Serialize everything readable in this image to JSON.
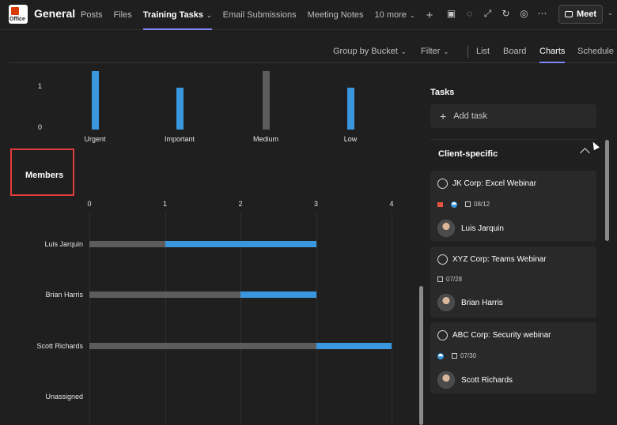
{
  "header": {
    "logo_text": "Office",
    "channel": "General",
    "tabs": [
      {
        "label": "Posts"
      },
      {
        "label": "Files"
      },
      {
        "label": "Training Tasks"
      },
      {
        "label": "Email Submissions"
      },
      {
        "label": "Meeting Notes"
      },
      {
        "label": "10 more"
      }
    ],
    "meet_label": "Meet"
  },
  "toolbar": {
    "group_by": "Group by Bucket",
    "filter": "Filter",
    "views": [
      "List",
      "Board",
      "Charts",
      "Schedule"
    ],
    "active_view": "Charts"
  },
  "chart_data": [
    {
      "type": "bar",
      "categories": [
        "Urgent",
        "Important",
        "Medium",
        "Low"
      ],
      "ytick_labels": [
        "1",
        "0"
      ],
      "ylim": [
        0,
        1.5
      ],
      "series": [
        {
          "values": [
            1.4,
            1,
            1.4,
            1
          ],
          "color": "#3a96dd"
        }
      ],
      "bar_colors": [
        "#3a96dd",
        "#3a96dd",
        "#5c5c5c",
        "#3a96dd"
      ]
    },
    {
      "type": "bar",
      "orientation": "horizontal",
      "title": "Members",
      "categories": [
        "Luis Jarquin",
        "Brian Harris",
        "Scott Richards",
        "Unassigned"
      ],
      "xtick_labels": [
        "0",
        "1",
        "2",
        "3",
        "4"
      ],
      "xlim": [
        0,
        4
      ],
      "series": [
        {
          "values": [
            1,
            2,
            3,
            0
          ],
          "color": "#5c5c5c"
        },
        {
          "values": [
            2,
            1,
            1,
            0
          ],
          "color": "#3a96dd"
        }
      ]
    }
  ],
  "task_pane": {
    "heading": "Tasks",
    "add_task_label": "Add task",
    "bucket": "Client-specific",
    "tasks": [
      {
        "title": "JK Corp: Excel Webinar",
        "due": "08/12",
        "assignee": "Luis Jarquin"
      },
      {
        "title": "XYZ Corp: Teams Webinar",
        "due": "07/28",
        "assignee": "Brian Harris"
      },
      {
        "title": "ABC Corp: Security webinar",
        "due": "07/30",
        "assignee": "Scott Richards"
      }
    ]
  }
}
